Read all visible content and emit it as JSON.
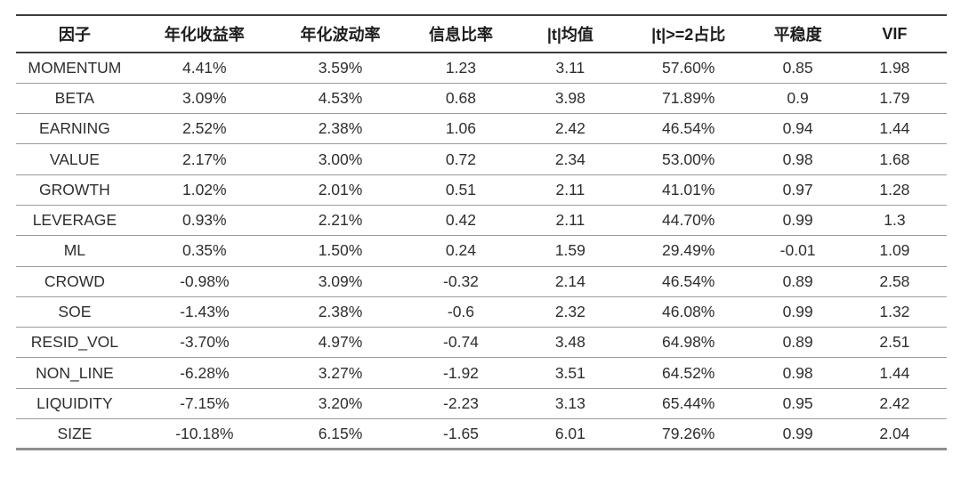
{
  "chart_data": {
    "type": "table",
    "columns": [
      "因子",
      "年化收益率",
      "年化波动率",
      "信息比率",
      "|t|均值",
      "|t|>=2占比",
      "平稳度",
      "VIF"
    ],
    "rows": [
      [
        "MOMENTUM",
        "4.41%",
        "3.59%",
        "1.23",
        "3.11",
        "57.60%",
        "0.85",
        "1.98"
      ],
      [
        "BETA",
        "3.09%",
        "4.53%",
        "0.68",
        "3.98",
        "71.89%",
        "0.9",
        "1.79"
      ],
      [
        "EARNING",
        "2.52%",
        "2.38%",
        "1.06",
        "2.42",
        "46.54%",
        "0.94",
        "1.44"
      ],
      [
        "VALUE",
        "2.17%",
        "3.00%",
        "0.72",
        "2.34",
        "53.00%",
        "0.98",
        "1.68"
      ],
      [
        "GROWTH",
        "1.02%",
        "2.01%",
        "0.51",
        "2.11",
        "41.01%",
        "0.97",
        "1.28"
      ],
      [
        "LEVERAGE",
        "0.93%",
        "2.21%",
        "0.42",
        "2.11",
        "44.70%",
        "0.99",
        "1.3"
      ],
      [
        "ML",
        "0.35%",
        "1.50%",
        "0.24",
        "1.59",
        "29.49%",
        "-0.01",
        "1.09"
      ],
      [
        "CROWD",
        "-0.98%",
        "3.09%",
        "-0.32",
        "2.14",
        "46.54%",
        "0.89",
        "2.58"
      ],
      [
        "SOE",
        "-1.43%",
        "2.38%",
        "-0.6",
        "2.32",
        "46.08%",
        "0.99",
        "1.32"
      ],
      [
        "RESID_VOL",
        "-3.70%",
        "4.97%",
        "-0.74",
        "3.48",
        "64.98%",
        "0.89",
        "2.51"
      ],
      [
        "NON_LINE",
        "-6.28%",
        "3.27%",
        "-1.92",
        "3.51",
        "64.52%",
        "0.98",
        "1.44"
      ],
      [
        "LIQUIDITY",
        "-7.15%",
        "3.20%",
        "-2.23",
        "3.13",
        "65.44%",
        "0.95",
        "2.42"
      ],
      [
        "SIZE",
        "-10.18%",
        "6.15%",
        "-1.65",
        "6.01",
        "79.26%",
        "0.99",
        "2.04"
      ]
    ],
    "title": "",
    "layout_hints": {
      "grid": "horizontal-rules-only",
      "header_bold": true
    }
  },
  "colors": {
    "background": "#ffffff",
    "text": "#2b2b2b",
    "rule_dark": "#3c3c3c",
    "rule_light": "#9b9b9b"
  }
}
